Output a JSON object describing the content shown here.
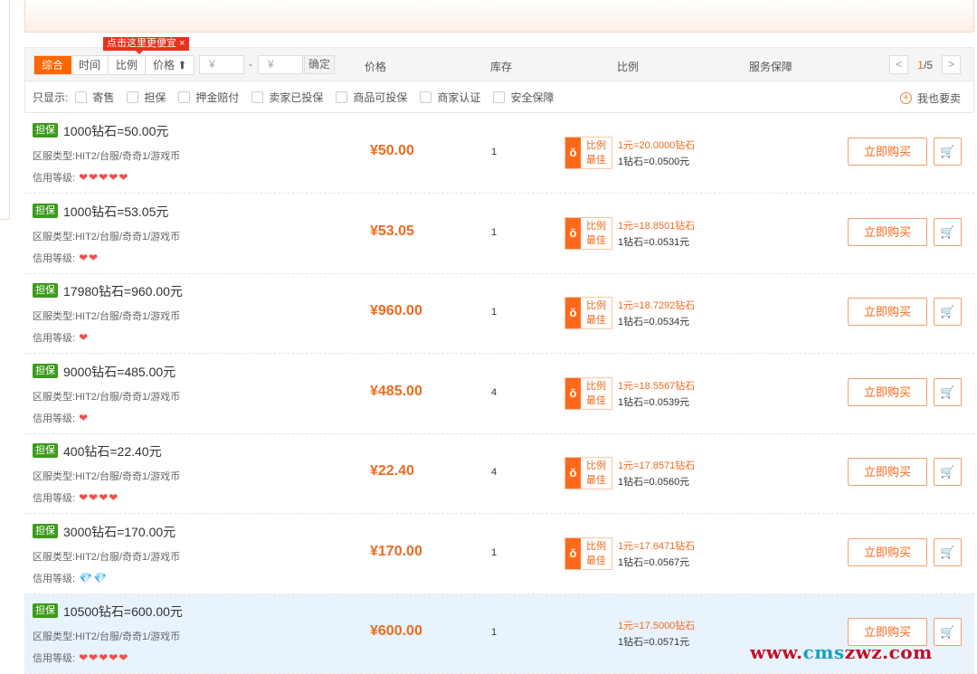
{
  "toolbar": {
    "sort": [
      "综合",
      "时间",
      "比例",
      "价格 ⬆"
    ],
    "tip": "点击这里更便宜",
    "tip_close": "×",
    "price_min_placeholder": "¥",
    "price_max_placeholder": "¥",
    "dash": "-",
    "confirm": "确定",
    "columns": {
      "price": "价格",
      "stock": "库存",
      "ratio": "比例",
      "service": "服务保障"
    },
    "page": {
      "current": "1",
      "total": "/5",
      "prev": "<",
      "next": ">"
    }
  },
  "filters": {
    "label": "只显示:",
    "options": [
      "寄售",
      "担保",
      "押金赔付",
      "卖家已投保",
      "商品可投保",
      "商家认证",
      "安全保障"
    ],
    "sell": "我也要卖",
    "sell_icon": "+"
  },
  "labels": {
    "server_prefix": "区服类型:",
    "credit_prefix": "信用等级:",
    "best_line1": "比例",
    "best_line2": "最佳",
    "best_icon": "ŏ",
    "buy": "立即购买",
    "cart_icon": "🛒"
  },
  "accent": "#ff6600",
  "items": [
    {
      "badge": "担保",
      "title": "1000钻石=50.00元",
      "server": "HIT2/台服/奇奇1/游戏币",
      "credit": {
        "type": "heart",
        "count": 5
      },
      "price": "¥50.00",
      "stock": "1",
      "best": true,
      "ratio_a": "1元=20.0000钻石",
      "ratio_b": "1钻石=0.0500元"
    },
    {
      "badge": "担保",
      "title": "1000钻石=53.05元",
      "server": "HIT2/台服/奇奇1/游戏币",
      "credit": {
        "type": "heart",
        "count": 2
      },
      "price": "¥53.05",
      "stock": "1",
      "best": true,
      "ratio_a": "1元=18.8501钻石",
      "ratio_b": "1钻石=0.0531元"
    },
    {
      "badge": "担保",
      "title": "17980钻石=960.00元",
      "server": "HIT2/台服/奇奇1/游戏币",
      "credit": {
        "type": "heart",
        "count": 1
      },
      "price": "¥960.00",
      "stock": "1",
      "best": true,
      "ratio_a": "1元=18.7292钻石",
      "ratio_b": "1钻石=0.0534元"
    },
    {
      "badge": "担保",
      "title": "9000钻石=485.00元",
      "server": "HIT2/台服/奇奇1/游戏币",
      "credit": {
        "type": "heart",
        "count": 1
      },
      "price": "¥485.00",
      "stock": "4",
      "best": true,
      "ratio_a": "1元=18.5567钻石",
      "ratio_b": "1钻石=0.0539元"
    },
    {
      "badge": "担保",
      "title": "400钻石=22.40元",
      "server": "HIT2/台服/奇奇1/游戏币",
      "credit": {
        "type": "heart",
        "count": 4
      },
      "price": "¥22.40",
      "stock": "4",
      "best": true,
      "ratio_a": "1元=17.8571钻石",
      "ratio_b": "1钻石=0.0560元"
    },
    {
      "badge": "担保",
      "title": "3000钻石=170.00元",
      "server": "HIT2/台服/奇奇1/游戏币",
      "credit": {
        "type": "diamond",
        "count": 2
      },
      "price": "¥170.00",
      "stock": "1",
      "best": true,
      "ratio_a": "1元=17.6471钻石",
      "ratio_b": "1钻石=0.0567元"
    },
    {
      "badge": "担保",
      "title": "10500钻石=600.00元",
      "server": "HIT2/台服/奇奇1/游戏币",
      "credit": {
        "type": "heart",
        "count": 5
      },
      "price": "¥600.00",
      "stock": "1",
      "best": false,
      "ratio_a": "1元=17.5000钻石",
      "ratio_b": "1钻石=0.0571元",
      "highlighted": true
    }
  ],
  "watermark": {
    "a": "www.",
    "b": "cms",
    "c": "zwz.com"
  }
}
